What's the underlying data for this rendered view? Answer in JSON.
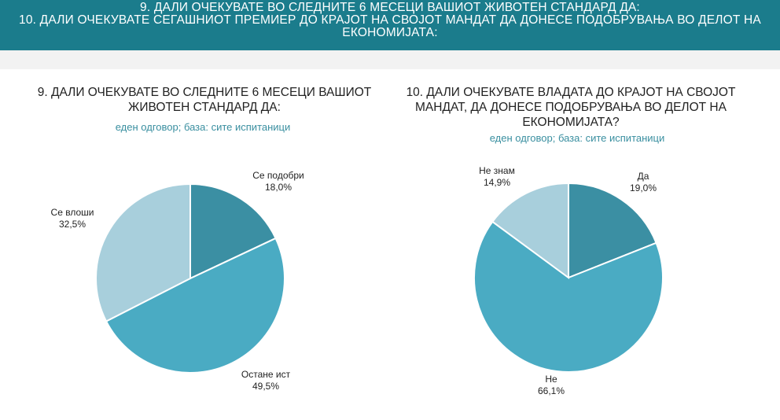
{
  "header": {
    "line1": "9. ДАЛИ ОЧЕКУВАТЕ ВО СЛЕДНИТЕ 6 МЕСЕЦИ ВАШИОТ ЖИВОТЕН СТАНДАРД ДА:",
    "line2": "10. ДАЛИ ОЧЕКУВАТЕ СЕГАШНИОТ ПРЕМИЕР ДО КРАЈОТ НА СВОЈОТ МАНДАТ ДА ДОНЕСЕ ПОДОБРУВАЊА ВО ДЕЛОТ НА",
    "line3": "ЕКОНОМИЈАТА:"
  },
  "colors": {
    "header_bg": "#1b7c8c",
    "dark": "#3b8fa3",
    "mid": "#4aabc3",
    "light": "#a8cfdc"
  },
  "chart_data": [
    {
      "type": "pie",
      "title": "9. ДАЛИ ОЧЕКУВАТЕ ВО СЛЕДНИТЕ 6 МЕСЕЦИ ВАШИОТ ЖИВОТЕН СТАНДАРД ДА:",
      "subtitle": "еден одговор; база: сите испитаници",
      "slices": [
        {
          "label": "Се подобри",
          "value": 18.0,
          "display": "18,0%",
          "color": "#3b8fa3"
        },
        {
          "label": "Остане ист",
          "value": 49.5,
          "display": "49,5%",
          "color": "#4aabc3"
        },
        {
          "label": "Се влоши",
          "value": 32.5,
          "display": "32,5%",
          "color": "#a8cfdc"
        }
      ]
    },
    {
      "type": "pie",
      "title": "10. ДАЛИ ОЧЕКУВАТЕ ВЛАДАТА ДО КРАЈОТ НА СВОЈОТ МАНДАТ, ДА ДОНЕСЕ ПОДОБРУВАЊА ВО ДЕЛОТ НА ЕКОНОМИЈАТА?",
      "subtitle": "еден одговор; база: сите испитаници",
      "slices": [
        {
          "label": "Да",
          "value": 19.0,
          "display": "19,0%",
          "color": "#3b8fa3"
        },
        {
          "label": "Не",
          "value": 66.1,
          "display": "66,1%",
          "color": "#4aabc3"
        },
        {
          "label": "Не знам",
          "value": 14.9,
          "display": "14,9%",
          "color": "#a8cfdc"
        }
      ]
    }
  ]
}
